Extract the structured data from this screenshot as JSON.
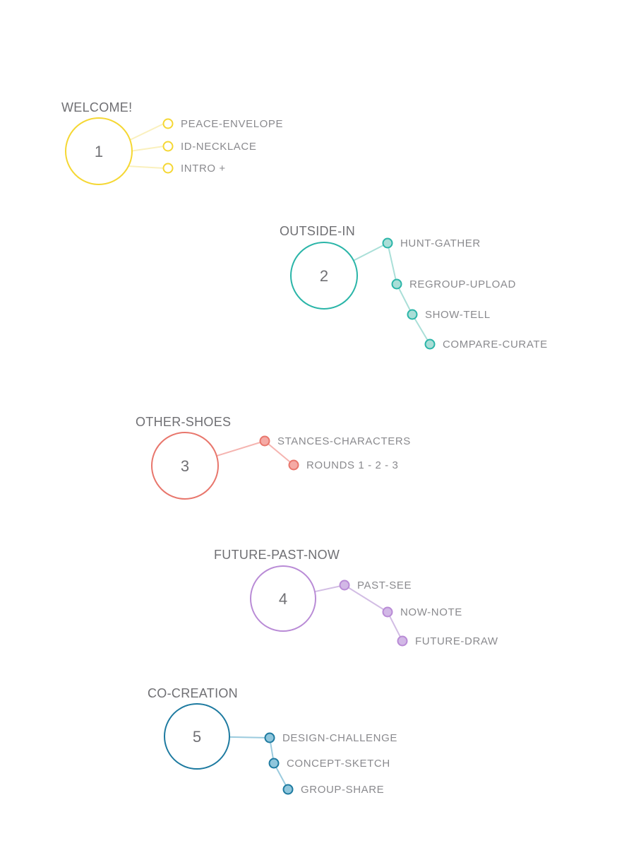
{
  "groups": [
    {
      "id": 1,
      "title": "WELCOME!",
      "number": "1",
      "color": "#f5d733",
      "nodeFill": "#ffffff",
      "linkColor": "#faf0bd",
      "chain": false,
      "items": [
        "PEACE-ENVELOPE",
        "ID-NECKLACE",
        "INTRO +"
      ]
    },
    {
      "id": 2,
      "title": "OUTSIDE-IN",
      "number": "2",
      "color": "#2ab5a8",
      "nodeFill": "#a9ded7",
      "linkColor": "#aadfd8",
      "chain": true,
      "items": [
        "HUNT-GATHER",
        "REGROUP-UPLOAD",
        "SHOW-TELL",
        "COMPARE-CURATE"
      ]
    },
    {
      "id": 3,
      "title": "OTHER-SHOES",
      "number": "3",
      "color": "#e8766c",
      "nodeFill": "#f5aaa5",
      "linkColor": "#f5b4b0",
      "chain": true,
      "items": [
        "STANCES-CHARACTERS",
        "ROUNDS 1 - 2 - 3"
      ]
    },
    {
      "id": 4,
      "title": "FUTURE-PAST-NOW",
      "number": "4",
      "color": "#b98bd6",
      "nodeFill": "#d2b8e6",
      "linkColor": "#d2bde4",
      "chain": true,
      "items": [
        "PAST-SEE",
        "NOW-NOTE",
        "FUTURE-DRAW"
      ]
    },
    {
      "id": 5,
      "title": "CO-CREATION",
      "number": "5",
      "color": "#1d7aa0",
      "nodeFill": "#8fc6dc",
      "linkColor": "#9bcbde",
      "chain": true,
      "items": [
        "DESIGN-CHALLENGE",
        "CONCEPT-SKETCH",
        "GROUP-SHARE"
      ]
    }
  ]
}
